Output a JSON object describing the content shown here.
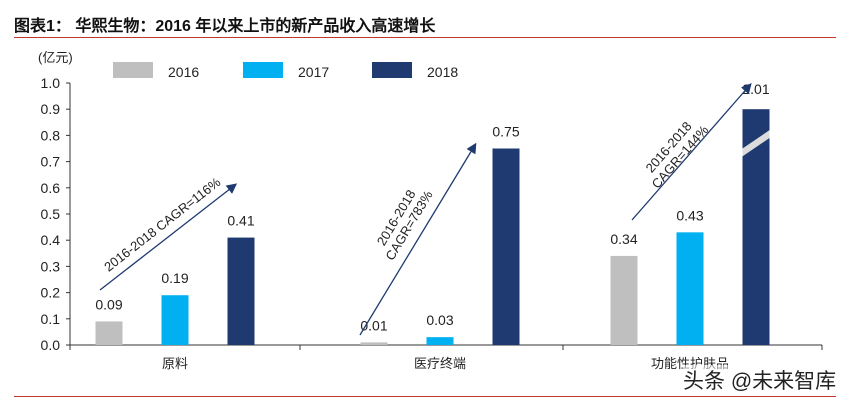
{
  "title": "图表1：  华熙生物：2016 年以来上市的新产品收入高速增长",
  "watermark": "头条 @未来智库",
  "chart_data": {
    "type": "bar",
    "ylabel": "(亿元)",
    "ylim": [
      0,
      1.0
    ],
    "yticks": [
      "0.0",
      "0.1",
      "0.2",
      "0.3",
      "0.4",
      "0.5",
      "0.6",
      "0.7",
      "0.8",
      "0.9",
      "1.0"
    ],
    "categories": [
      "原料",
      "医疗终端",
      "功能性护肤品"
    ],
    "series": [
      {
        "name": "2016",
        "color": "#bfbfbf",
        "values": [
          0.09,
          0.01,
          0.34
        ],
        "labels": [
          "0.09",
          "0.01",
          "0.34"
        ]
      },
      {
        "name": "2017",
        "color": "#00b0f0",
        "values": [
          0.19,
          0.03,
          0.43
        ],
        "labels": [
          "0.19",
          "0.03",
          "0.43"
        ]
      },
      {
        "name": "2018",
        "color": "#1f3a70",
        "values": [
          0.41,
          0.75,
          2.01
        ],
        "labels": [
          "0.41",
          "0.75",
          "2.01"
        ]
      }
    ],
    "axis_break": "2018 功能性护肤品 bar truncated",
    "legend": "top",
    "grid": false,
    "annotations": [
      "2016-2018 CAGR=116%",
      "2016-2018 CAGR=783%",
      "2016-2018 CAGR=144%"
    ]
  }
}
